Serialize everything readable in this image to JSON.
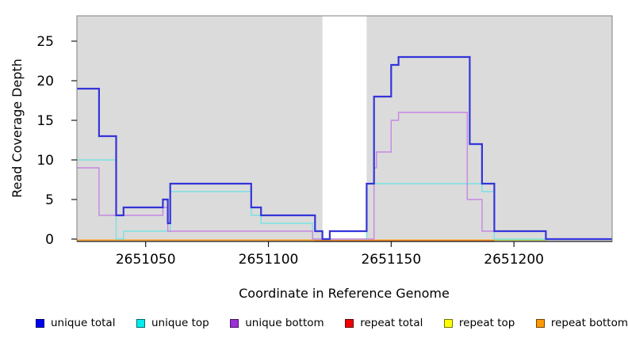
{
  "chart_data": {
    "type": "line",
    "subtype": "step-coverage",
    "title": "",
    "xlabel": "Coordinate in Reference Genome",
    "ylabel": "Read Coverage Depth",
    "x_ticks": [
      2651050,
      2651100,
      2651150,
      2651200
    ],
    "y_ticks": [
      0,
      5,
      10,
      15,
      20,
      25
    ],
    "xlim": [
      2651022,
      2651240
    ],
    "ylim": [
      0,
      28.2
    ],
    "grid": "off",
    "legend_position": "bottom-horizontal",
    "panel_background_color": "#DBDBDB",
    "unmasked_white_region": {
      "start": 2651122,
      "end": 2651140,
      "color": "#FFFFFF"
    },
    "series": [
      {
        "name": "unique total",
        "line_color": "#3434D9",
        "swatch_color": "#0000EE",
        "line_width": 2.2,
        "dy": 0,
        "segments": [
          [
            2651022,
            2651031,
            19
          ],
          [
            2651031,
            2651038,
            13
          ],
          [
            2651038,
            2651041,
            3
          ],
          [
            2651041,
            2651057,
            4
          ],
          [
            2651057,
            2651059,
            5
          ],
          [
            2651059,
            2651060,
            2
          ],
          [
            2651060,
            2651093,
            7
          ],
          [
            2651093,
            2651097,
            4
          ],
          [
            2651097,
            2651119,
            3
          ],
          [
            2651119,
            2651122,
            1
          ],
          [
            2651122,
            2651125,
            0
          ],
          [
            2651125,
            2651140,
            1
          ],
          [
            2651140,
            2651143,
            7
          ],
          [
            2651143,
            2651150,
            18
          ],
          [
            2651150,
            2651153,
            22
          ],
          [
            2651153,
            2651182,
            23
          ],
          [
            2651182,
            2651187,
            12
          ],
          [
            2651187,
            2651192,
            7
          ],
          [
            2651192,
            2651213,
            1
          ],
          [
            2651213,
            2651240,
            0
          ]
        ]
      },
      {
        "name": "unique top",
        "line_color": "#79E2E2",
        "swatch_color": "#00EEEE",
        "line_width": 1.4,
        "dy": 0,
        "segments": [
          [
            2651022,
            2651038,
            10
          ],
          [
            2651038,
            2651041,
            0
          ],
          [
            2651041,
            2651060,
            1
          ],
          [
            2651060,
            2651093,
            6
          ],
          [
            2651093,
            2651097,
            3
          ],
          [
            2651097,
            2651118,
            2
          ],
          [
            2651118,
            2651140,
            0
          ],
          [
            2651140,
            2651187,
            7
          ],
          [
            2651187,
            2651192,
            6
          ],
          [
            2651192,
            2651240,
            0
          ]
        ]
      },
      {
        "name": "unique bottom",
        "line_color": "#C687E3",
        "swatch_color": "#9B30D9",
        "line_width": 1.4,
        "dy": 0,
        "segments": [
          [
            2651022,
            2651031,
            9
          ],
          [
            2651031,
            2651057,
            3
          ],
          [
            2651057,
            2651059,
            4
          ],
          [
            2651059,
            2651118,
            1
          ],
          [
            2651118,
            2651143,
            0
          ],
          [
            2651143,
            2651144,
            9
          ],
          [
            2651144,
            2651150,
            11
          ],
          [
            2651150,
            2651153,
            15
          ],
          [
            2651153,
            2651181,
            16
          ],
          [
            2651181,
            2651187,
            5
          ],
          [
            2651187,
            2651213,
            1
          ],
          [
            2651213,
            2651240,
            0
          ]
        ]
      },
      {
        "name": "repeat total",
        "line_color": "#CC4466",
        "swatch_color": "#EE0000",
        "line_width": 1.3,
        "dy": 2.6,
        "segments": [
          [
            2651119,
            2651192,
            0
          ]
        ]
      },
      {
        "name": "repeat top",
        "line_color": "#BCD94C",
        "swatch_color": "#FFFF00",
        "line_width": 1.3,
        "dy": 1.3,
        "segments": [
          [
            2651192,
            2651213,
            0
          ]
        ]
      },
      {
        "name": "repeat bottom",
        "line_color": "#FF9C1A",
        "swatch_color": "#FF9900",
        "line_width": 1.6,
        "dy": 1.3,
        "segments": [
          [
            2651022,
            2651192,
            0
          ]
        ]
      }
    ],
    "draw_order": [
      "repeat top",
      "repeat total",
      "repeat bottom",
      "unique top",
      "unique bottom",
      "unique total"
    ]
  }
}
